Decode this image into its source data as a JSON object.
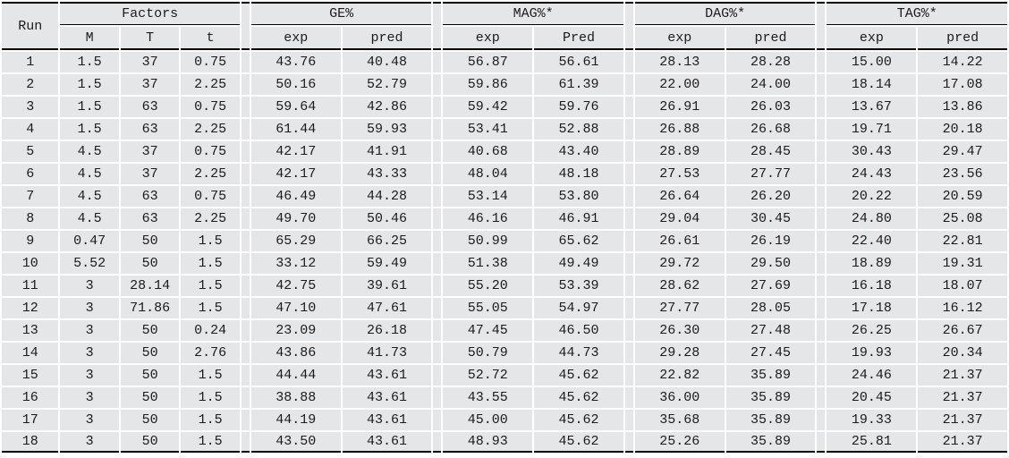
{
  "table": {
    "run_label": "Run",
    "groups": [
      {
        "label": "Factors",
        "sub": [
          "M",
          "T",
          "t"
        ]
      },
      {
        "label": "GE%",
        "sub": [
          "exp",
          "pred"
        ]
      },
      {
        "label": "MAG%*",
        "sub": [
          "exp",
          "Pred"
        ]
      },
      {
        "label": "DAG%*",
        "sub": [
          "exp",
          "pred"
        ]
      },
      {
        "label": "TAG%*",
        "sub": [
          "exp",
          "pred"
        ]
      }
    ],
    "column_keys": [
      "run",
      "m",
      "temperature",
      "time",
      "ge-exp",
      "ge-pred",
      "mag-exp",
      "mag-pred",
      "dag-exp",
      "dag-pred",
      "tag-exp",
      "tag-pred"
    ],
    "rows": [
      [
        "1",
        "1.5",
        "37",
        "0.75",
        "43.76",
        "40.48",
        "56.87",
        "56.61",
        "28.13",
        "28.28",
        "15.00",
        "14.22"
      ],
      [
        "2",
        "1.5",
        "37",
        "2.25",
        "50.16",
        "52.79",
        "59.86",
        "61.39",
        "22.00",
        "24.00",
        "18.14",
        "17.08"
      ],
      [
        "3",
        "1.5",
        "63",
        "0.75",
        "59.64",
        "42.86",
        "59.42",
        "59.76",
        "26.91",
        "26.03",
        "13.67",
        "13.86"
      ],
      [
        "4",
        "1.5",
        "63",
        "2.25",
        "61.44",
        "59.93",
        "53.41",
        "52.88",
        "26.88",
        "26.68",
        "19.71",
        "20.18"
      ],
      [
        "5",
        "4.5",
        "37",
        "0.75",
        "42.17",
        "41.91",
        "40.68",
        "43.40",
        "28.89",
        "28.45",
        "30.43",
        "29.47"
      ],
      [
        "6",
        "4.5",
        "37",
        "2.25",
        "42.17",
        "43.33",
        "48.04",
        "48.18",
        "27.53",
        "27.77",
        "24.43",
        "23.56"
      ],
      [
        "7",
        "4.5",
        "63",
        "0.75",
        "46.49",
        "44.28",
        "53.14",
        "53.80",
        "26.64",
        "26.20",
        "20.22",
        "20.59"
      ],
      [
        "8",
        "4.5",
        "63",
        "2.25",
        "49.70",
        "50.46",
        "46.16",
        "46.91",
        "29.04",
        "30.45",
        "24.80",
        "25.08"
      ],
      [
        "9",
        "0.47",
        "50",
        "1.5",
        "65.29",
        "66.25",
        "50.99",
        "65.62",
        "26.61",
        "26.19",
        "22.40",
        "22.81"
      ],
      [
        "10",
        "5.52",
        "50",
        "1.5",
        "33.12",
        "59.49",
        "51.38",
        "49.49",
        "29.72",
        "29.50",
        "18.89",
        "19.31"
      ],
      [
        "11",
        "3",
        "28.14",
        "1.5",
        "42.75",
        "39.61",
        "55.20",
        "53.39",
        "28.62",
        "27.69",
        "16.18",
        "18.07"
      ],
      [
        "12",
        "3",
        "71.86",
        "1.5",
        "47.10",
        "47.61",
        "55.05",
        "54.97",
        "27.77",
        "28.05",
        "17.18",
        "16.12"
      ],
      [
        "13",
        "3",
        "50",
        "0.24",
        "23.09",
        "26.18",
        "47.45",
        "46.50",
        "26.30",
        "27.48",
        "26.25",
        "26.67"
      ],
      [
        "14",
        "3",
        "50",
        "2.76",
        "43.86",
        "41.73",
        "50.79",
        "44.73",
        "29.28",
        "27.45",
        "19.93",
        "20.34"
      ],
      [
        "15",
        "3",
        "50",
        "1.5",
        "44.44",
        "43.61",
        "52.72",
        "45.62",
        "22.82",
        "35.89",
        "24.46",
        "21.37"
      ],
      [
        "16",
        "3",
        "50",
        "1.5",
        "38.88",
        "43.61",
        "43.55",
        "45.62",
        "36.00",
        "35.89",
        "20.45",
        "21.37"
      ],
      [
        "17",
        "3",
        "50",
        "1.5",
        "44.19",
        "43.61",
        "45.00",
        "45.62",
        "35.68",
        "35.89",
        "19.33",
        "21.37"
      ],
      [
        "18",
        "3",
        "50",
        "1.5",
        "43.50",
        "43.61",
        "48.93",
        "45.62",
        "25.26",
        "35.89",
        "25.81",
        "21.37"
      ]
    ]
  },
  "colors": {
    "cell_background": "#e5e6e7",
    "gap": "#ffffff",
    "border": "#000000",
    "text": "#1b1b1b"
  }
}
